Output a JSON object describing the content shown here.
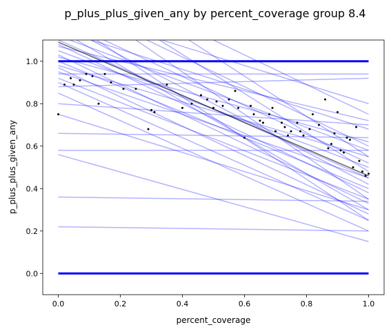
{
  "chart_data": {
    "type": "line",
    "title": "p_plus_plus_given_any by percent_coverage group 8.4",
    "xlabel": "percent_coverage",
    "ylabel": "p_plus_plus_given_any",
    "xlim": [
      -0.05,
      1.05
    ],
    "ylim": [
      -0.1,
      1.1
    ],
    "xticks": [
      0.0,
      0.2,
      0.4,
      0.6,
      0.8,
      1.0
    ],
    "xtick_labels": [
      "0.0",
      "0.2",
      "0.4",
      "0.6",
      "0.8",
      "1.0"
    ],
    "yticks": [
      0.0,
      0.2,
      0.4,
      0.6,
      0.8,
      1.0
    ],
    "ytick_labels": [
      "0.0",
      "0.2",
      "0.4",
      "0.6",
      "0.8",
      "1.0"
    ],
    "grid": false,
    "legend": "none",
    "colors": {
      "fit_lines": "#0000ff",
      "mean_line": "#000000",
      "points": "#000000",
      "binary_points": "#0000ff"
    },
    "fit_lines_alpha": 0.3,
    "mean_line": {
      "x": [
        0.0,
        1.0
      ],
      "y": [
        1.09,
        0.46
      ]
    },
    "fit_lines": [
      {
        "x": [
          0,
          1
        ],
        "y": [
          0.22,
          0.2
        ]
      },
      {
        "x": [
          0,
          1
        ],
        "y": [
          0.36,
          0.34
        ]
      },
      {
        "x": [
          0,
          1
        ],
        "y": [
          0.56,
          0.15
        ]
      },
      {
        "x": [
          0,
          1
        ],
        "y": [
          0.58,
          0.58
        ]
      },
      {
        "x": [
          0,
          1
        ],
        "y": [
          0.66,
          0.64
        ]
      },
      {
        "x": [
          0,
          1
        ],
        "y": [
          0.75,
          0.3
        ]
      },
      {
        "x": [
          0,
          1
        ],
        "y": [
          0.8,
          0.7
        ]
      },
      {
        "x": [
          0,
          1
        ],
        "y": [
          0.85,
          0.2
        ]
      },
      {
        "x": [
          0,
          1
        ],
        "y": [
          0.88,
          0.92
        ]
      },
      {
        "x": [
          0,
          1
        ],
        "y": [
          0.9,
          0.25
        ]
      },
      {
        "x": [
          0,
          1
        ],
        "y": [
          0.92,
          0.35
        ]
      },
      {
        "x": [
          0,
          1
        ],
        "y": [
          0.94,
          0.94
        ]
      },
      {
        "x": [
          0,
          1
        ],
        "y": [
          0.95,
          0.45
        ]
      },
      {
        "x": [
          0,
          1
        ],
        "y": [
          0.97,
          0.28
        ]
      },
      {
        "x": [
          0,
          1
        ],
        "y": [
          0.98,
          0.55
        ]
      },
      {
        "x": [
          0,
          1
        ],
        "y": [
          1.0,
          0.4
        ]
      },
      {
        "x": [
          0,
          1
        ],
        "y": [
          1.02,
          0.62
        ]
      },
      {
        "x": [
          0,
          1
        ],
        "y": [
          1.03,
          0.33
        ]
      },
      {
        "x": [
          0,
          1
        ],
        "y": [
          1.05,
          0.5
        ]
      },
      {
        "x": [
          0,
          1
        ],
        "y": [
          1.07,
          0.72
        ]
      },
      {
        "x": [
          0,
          1
        ],
        "y": [
          1.08,
          0.38
        ]
      },
      {
        "x": [
          0,
          1
        ],
        "y": [
          1.1,
          0.45
        ]
      },
      {
        "x": [
          0,
          1
        ],
        "y": [
          1.12,
          0.58
        ]
      },
      {
        "x": [
          0,
          1
        ],
        "y": [
          1.15,
          0.3
        ]
      },
      {
        "x": [
          0,
          1
        ],
        "y": [
          1.15,
          0.68
        ]
      },
      {
        "x": [
          0,
          1
        ],
        "y": [
          1.18,
          0.42
        ]
      },
      {
        "x": [
          0,
          1
        ],
        "y": [
          1.2,
          0.52
        ]
      },
      {
        "x": [
          0,
          1
        ],
        "y": [
          1.22,
          0.25
        ]
      },
      {
        "x": [
          0,
          1
        ],
        "y": [
          1.25,
          0.8
        ]
      },
      {
        "x": [
          0,
          1
        ],
        "y": [
          1.3,
          0.6
        ]
      },
      {
        "x": [
          0,
          1
        ],
        "y": [
          1.35,
          0.35
        ]
      },
      {
        "x": [
          0,
          1
        ],
        "y": [
          1.4,
          0.48
        ]
      },
      {
        "x": [
          0,
          1
        ],
        "y": [
          1.45,
          0.75
        ]
      },
      {
        "x": [
          0,
          1
        ],
        "y": [
          1.5,
          0.55
        ]
      }
    ],
    "scatter_points": [
      {
        "x": 0.0,
        "y": 0.75
      },
      {
        "x": 0.02,
        "y": 0.89
      },
      {
        "x": 0.04,
        "y": 0.92
      },
      {
        "x": 0.05,
        "y": 0.89
      },
      {
        "x": 0.07,
        "y": 0.91
      },
      {
        "x": 0.09,
        "y": 0.94
      },
      {
        "x": 0.11,
        "y": 0.93
      },
      {
        "x": 0.13,
        "y": 0.8
      },
      {
        "x": 0.15,
        "y": 0.94
      },
      {
        "x": 0.17,
        "y": 0.9
      },
      {
        "x": 0.21,
        "y": 0.87
      },
      {
        "x": 0.25,
        "y": 0.87
      },
      {
        "x": 0.29,
        "y": 0.68
      },
      {
        "x": 0.3,
        "y": 0.77
      },
      {
        "x": 0.31,
        "y": 0.76
      },
      {
        "x": 0.35,
        "y": 0.89
      },
      {
        "x": 0.4,
        "y": 0.78
      },
      {
        "x": 0.43,
        "y": 0.8
      },
      {
        "x": 0.46,
        "y": 0.84
      },
      {
        "x": 0.48,
        "y": 0.82
      },
      {
        "x": 0.5,
        "y": 0.78
      },
      {
        "x": 0.51,
        "y": 0.81
      },
      {
        "x": 0.53,
        "y": 0.79
      },
      {
        "x": 0.55,
        "y": 0.82
      },
      {
        "x": 0.57,
        "y": 0.86
      },
      {
        "x": 0.58,
        "y": 0.78
      },
      {
        "x": 0.6,
        "y": 0.64
      },
      {
        "x": 0.62,
        "y": 0.79
      },
      {
        "x": 0.63,
        "y": 0.75
      },
      {
        "x": 0.65,
        "y": 0.72
      },
      {
        "x": 0.66,
        "y": 0.71
      },
      {
        "x": 0.68,
        "y": 0.75
      },
      {
        "x": 0.69,
        "y": 0.78
      },
      {
        "x": 0.7,
        "y": 0.67
      },
      {
        "x": 0.72,
        "y": 0.71
      },
      {
        "x": 0.73,
        "y": 0.69
      },
      {
        "x": 0.74,
        "y": 0.65
      },
      {
        "x": 0.75,
        "y": 0.67
      },
      {
        "x": 0.77,
        "y": 0.71
      },
      {
        "x": 0.78,
        "y": 0.67
      },
      {
        "x": 0.79,
        "y": 0.65
      },
      {
        "x": 0.81,
        "y": 0.68
      },
      {
        "x": 0.82,
        "y": 0.75
      },
      {
        "x": 0.84,
        "y": 0.7
      },
      {
        "x": 0.86,
        "y": 0.82
      },
      {
        "x": 0.87,
        "y": 0.59
      },
      {
        "x": 0.88,
        "y": 0.61
      },
      {
        "x": 0.89,
        "y": 0.66
      },
      {
        "x": 0.9,
        "y": 0.76
      },
      {
        "x": 0.91,
        "y": 0.58
      },
      {
        "x": 0.92,
        "y": 0.57
      },
      {
        "x": 0.93,
        "y": 0.64
      },
      {
        "x": 0.94,
        "y": 0.63
      },
      {
        "x": 0.95,
        "y": 0.5
      },
      {
        "x": 0.96,
        "y": 0.69
      },
      {
        "x": 0.97,
        "y": 0.53
      },
      {
        "x": 0.98,
        "y": 0.48
      },
      {
        "x": 0.99,
        "y": 0.46
      },
      {
        "x": 1.0,
        "y": 0.47
      }
    ],
    "binary_rows": [
      0.0,
      1.0
    ],
    "binary_x_range": [
      0.0,
      1.0
    ]
  }
}
